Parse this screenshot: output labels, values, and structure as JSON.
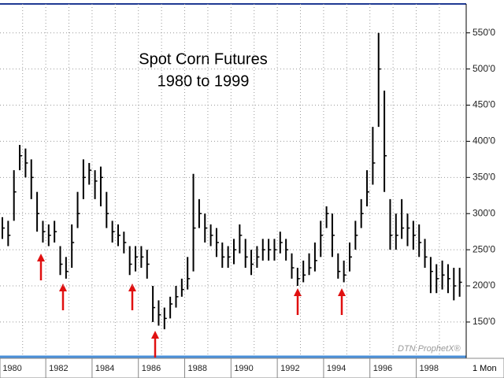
{
  "chart_data": {
    "type": "hlc",
    "title": "Spot Corn Futures",
    "subtitle": "1980 to 1999",
    "watermark": "DTN ProphetX®",
    "interval_label": "1 Mon",
    "color": "#000000",
    "grid": true,
    "ylim": [
      102,
      590
    ],
    "yticks": [
      {
        "value": 150,
        "label": "150'0"
      },
      {
        "value": 200,
        "label": "200'0"
      },
      {
        "value": 250,
        "label": "250'0"
      },
      {
        "value": 300,
        "label": "300'0"
      },
      {
        "value": 350,
        "label": "350'0"
      },
      {
        "value": 400,
        "label": "400'0"
      },
      {
        "value": 450,
        "label": "450'0"
      },
      {
        "value": 500,
        "label": "500'0"
      },
      {
        "value": 550,
        "label": "550'0"
      }
    ],
    "categories": [
      "1980",
      null,
      null,
      null,
      null,
      null,
      null,
      null,
      "1982",
      null,
      null,
      null,
      null,
      null,
      null,
      null,
      "1984",
      null,
      null,
      null,
      null,
      null,
      null,
      null,
      "1986",
      null,
      null,
      null,
      null,
      null,
      null,
      null,
      "1988",
      null,
      null,
      null,
      null,
      null,
      null,
      null,
      "1990",
      null,
      null,
      null,
      null,
      null,
      null,
      null,
      "1992",
      null,
      null,
      null,
      null,
      null,
      null,
      null,
      "1994",
      null,
      null,
      null,
      null,
      null,
      null,
      null,
      "1996",
      null,
      null,
      null,
      null,
      null,
      null,
      null,
      "1998",
      null,
      null,
      null,
      null,
      null,
      null,
      null
    ],
    "high": [
      295,
      290,
      360,
      395,
      390,
      375,
      330,
      290,
      285,
      290,
      255,
      240,
      285,
      330,
      375,
      370,
      360,
      365,
      330,
      290,
      285,
      275,
      255,
      255,
      255,
      250,
      200,
      180,
      170,
      185,
      200,
      210,
      240,
      355,
      320,
      300,
      285,
      280,
      260,
      255,
      265,
      285,
      265,
      250,
      255,
      265,
      265,
      265,
      275,
      265,
      245,
      225,
      235,
      245,
      260,
      290,
      310,
      300,
      245,
      235,
      260,
      290,
      320,
      360,
      420,
      550,
      470,
      320,
      300,
      320,
      300,
      290,
      285,
      265,
      240,
      230,
      235,
      230,
      225,
      225
    ],
    "low": [
      265,
      255,
      290,
      360,
      350,
      320,
      275,
      260,
      255,
      260,
      215,
      210,
      225,
      280,
      320,
      340,
      320,
      310,
      280,
      260,
      255,
      245,
      215,
      220,
      225,
      210,
      150,
      145,
      140,
      155,
      170,
      185,
      195,
      220,
      280,
      260,
      255,
      240,
      225,
      225,
      230,
      245,
      225,
      215,
      225,
      235,
      235,
      235,
      245,
      235,
      210,
      200,
      205,
      215,
      220,
      240,
      280,
      240,
      210,
      205,
      220,
      250,
      280,
      310,
      340,
      420,
      330,
      250,
      250,
      265,
      255,
      250,
      240,
      225,
      190,
      190,
      195,
      190,
      180,
      185
    ],
    "close": [
      280,
      270,
      330,
      380,
      370,
      350,
      300,
      275,
      270,
      275,
      230,
      220,
      260,
      300,
      350,
      360,
      345,
      350,
      300,
      275,
      270,
      260,
      230,
      240,
      240,
      230,
      170,
      160,
      155,
      175,
      185,
      195,
      210,
      280,
      300,
      280,
      270,
      260,
      240,
      240,
      250,
      270,
      240,
      230,
      240,
      250,
      250,
      250,
      260,
      250,
      225,
      210,
      215,
      225,
      235,
      270,
      300,
      270,
      220,
      215,
      240,
      270,
      300,
      330,
      370,
      500,
      380,
      270,
      270,
      280,
      280,
      270,
      260,
      240,
      220,
      210,
      215,
      210,
      200,
      205
    ]
  }
}
